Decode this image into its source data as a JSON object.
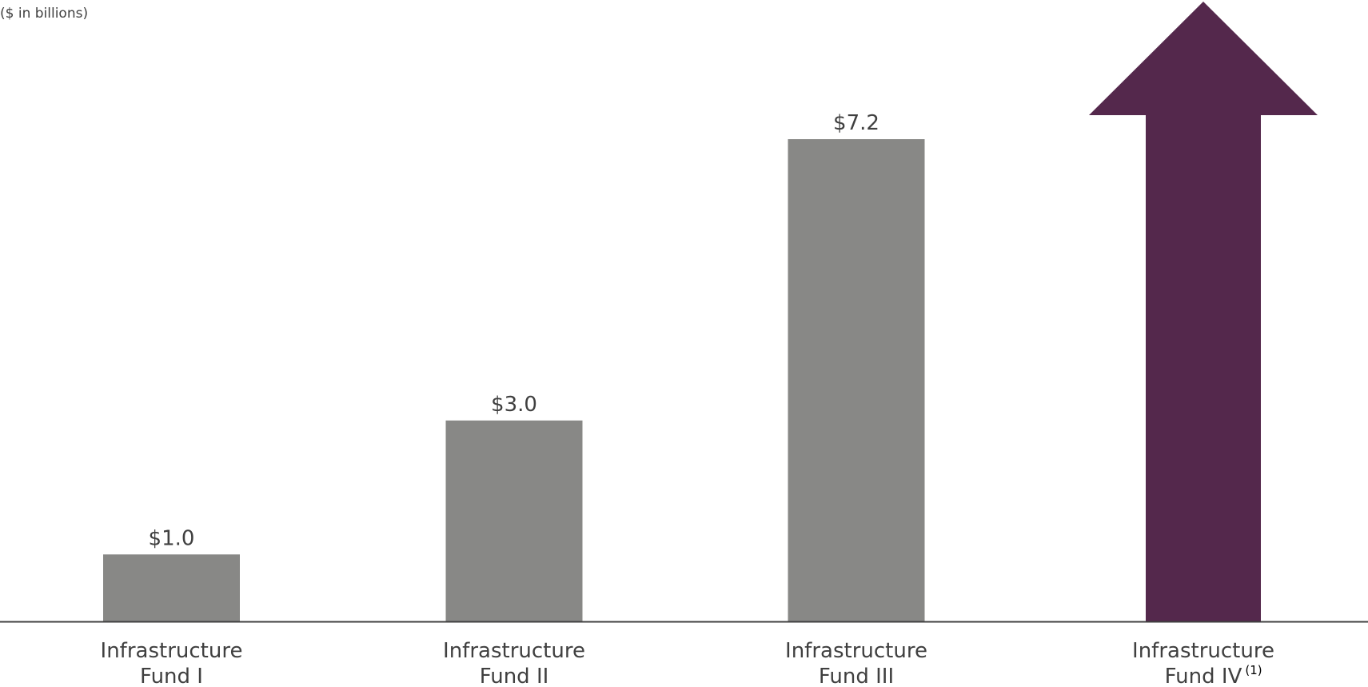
{
  "chart_data": {
    "type": "bar",
    "unit_label": "($ in billions)",
    "categories": [
      {
        "line1": "Infrastructure",
        "line2": "Fund I",
        "note": ""
      },
      {
        "line1": "Infrastructure",
        "line2": "Fund II",
        "note": ""
      },
      {
        "line1": "Infrastructure",
        "line2": "Fund III",
        "note": ""
      },
      {
        "line1": "Infrastructure",
        "line2": "Fund IV",
        "note": "(1)"
      }
    ],
    "values": [
      1.0,
      3.0,
      7.2,
      null
    ],
    "value_labels": [
      "$1.0",
      "$3.0",
      "$7.2",
      ""
    ],
    "arrow_category": 3,
    "colors": {
      "bar": "#888886",
      "arrow": "#54284c",
      "axis": "#404040",
      "text": "#404040"
    },
    "ylim": [
      0,
      7.2
    ],
    "grid": false,
    "legend": "none"
  }
}
